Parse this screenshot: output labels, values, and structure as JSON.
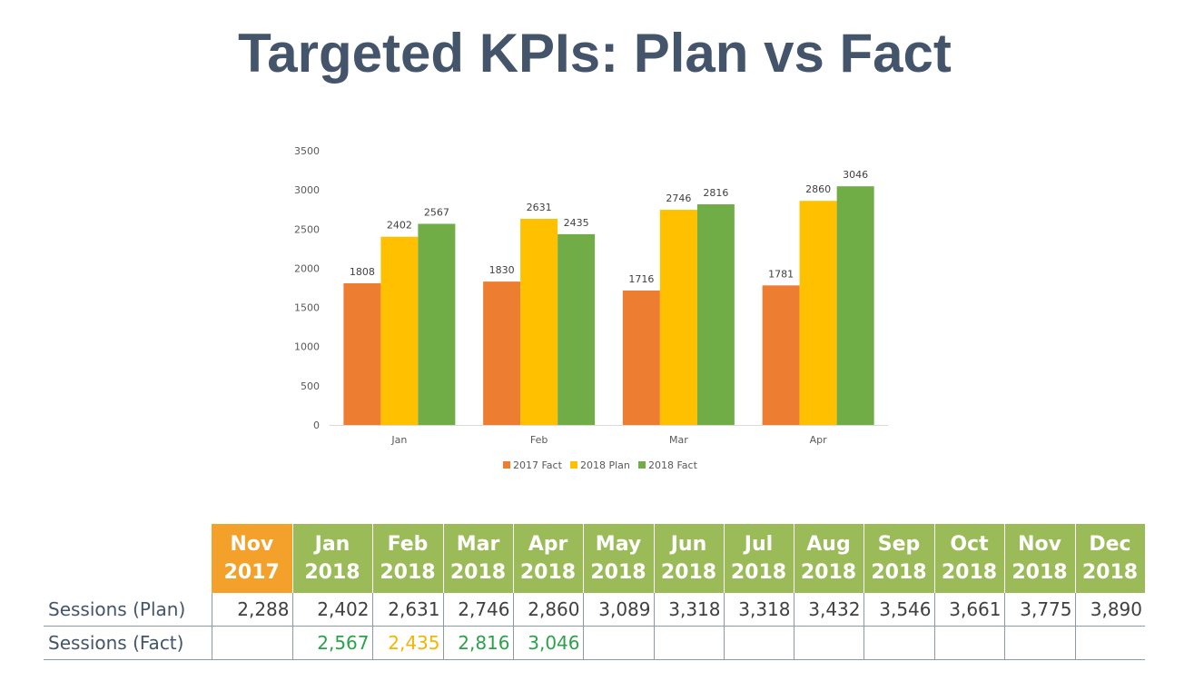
{
  "page": {
    "title": "Targeted KPIs: Plan vs Fact"
  },
  "chart_data": {
    "type": "bar",
    "title": "",
    "xlabel": "",
    "ylabel": "",
    "categories": [
      "Jan",
      "Feb",
      "Mar",
      "Apr"
    ],
    "ylim": [
      0,
      3500
    ],
    "yticks": [
      "0",
      "500",
      "1000",
      "1500",
      "2000",
      "2500",
      "3000",
      "3500"
    ],
    "grid": false,
    "legend_position": "bottom",
    "series": [
      {
        "name": "2017 Fact",
        "color": "#ed7d31",
        "values": [
          1808,
          1830,
          1716,
          1781
        ]
      },
      {
        "name": "2018 Plan",
        "color": "#ffc000",
        "values": [
          2402,
          2631,
          2746,
          2860
        ]
      },
      {
        "name": "2018 Fact",
        "color": "#70ad47",
        "values": [
          2567,
          2435,
          2816,
          3046
        ]
      }
    ]
  },
  "table": {
    "header_color_prev": "#f4a12b",
    "header_color": "#9bbb59",
    "good_color": "#2aa24a",
    "bad_color": "#f5b400",
    "columns": [
      {
        "month": "Nov",
        "year": "2017",
        "prev": true
      },
      {
        "month": "Jan",
        "year": "2018"
      },
      {
        "month": "Feb",
        "year": "2018"
      },
      {
        "month": "Mar",
        "year": "2018"
      },
      {
        "month": "Apr",
        "year": "2018"
      },
      {
        "month": "May",
        "year": "2018"
      },
      {
        "month": "Jun",
        "year": "2018"
      },
      {
        "month": "Jul",
        "year": "2018"
      },
      {
        "month": "Aug",
        "year": "2018"
      },
      {
        "month": "Sep",
        "year": "2018"
      },
      {
        "month": "Oct",
        "year": "2018"
      },
      {
        "month": "Nov",
        "year": "2018"
      },
      {
        "month": "Dec",
        "year": "2018"
      }
    ],
    "rows": [
      {
        "label": "Sessions (Plan)",
        "cells": [
          {
            "value": "2,288"
          },
          {
            "value": "2,402"
          },
          {
            "value": "2,631"
          },
          {
            "value": "2,746"
          },
          {
            "value": "2,860"
          },
          {
            "value": "3,089"
          },
          {
            "value": "3,318"
          },
          {
            "value": "3,318"
          },
          {
            "value": "3,432"
          },
          {
            "value": "3,546"
          },
          {
            "value": "3,661"
          },
          {
            "value": "3,775"
          },
          {
            "value": "3,890"
          }
        ]
      },
      {
        "label": "Sessions (Fact)",
        "cells": [
          {
            "value": ""
          },
          {
            "value": "2,567",
            "status": "good"
          },
          {
            "value": "2,435",
            "status": "bad"
          },
          {
            "value": "2,816",
            "status": "good"
          },
          {
            "value": "3,046",
            "status": "good"
          },
          {
            "value": ""
          },
          {
            "value": ""
          },
          {
            "value": ""
          },
          {
            "value": ""
          },
          {
            "value": ""
          },
          {
            "value": ""
          },
          {
            "value": ""
          },
          {
            "value": ""
          }
        ]
      }
    ]
  }
}
